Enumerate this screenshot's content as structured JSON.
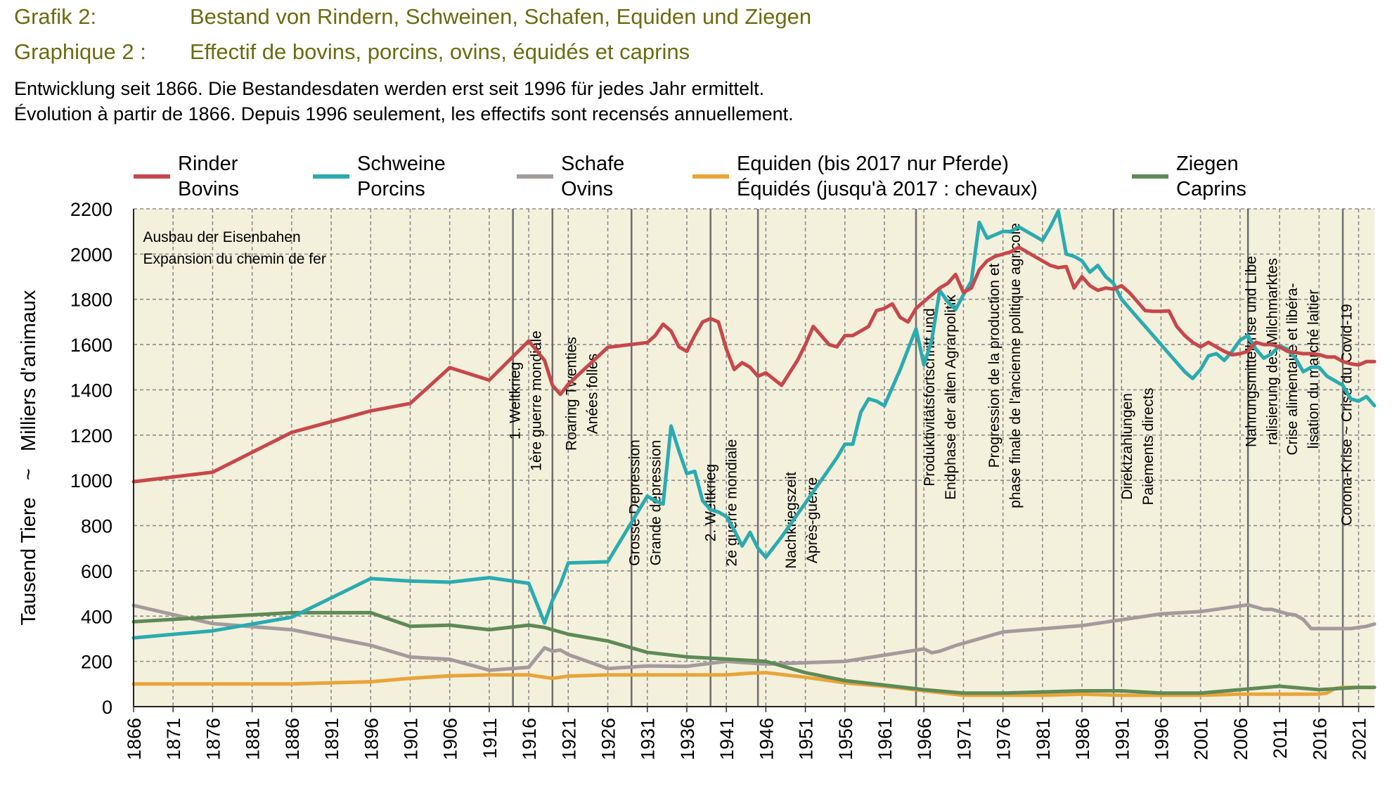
{
  "header": {
    "line1_label": "Grafik 2:",
    "line1_title": "Bestand von Rindern, Schweinen, Schafen, Equiden und Ziegen",
    "line2_label": "Graphique 2 :",
    "line2_title": "Effectif de bovins, porcins, ovins, équidés et caprins",
    "subtitle1": "Entwicklung seit 1866. Die Bestandesdaten werden erst seit 1996 für jedes Jahr ermittelt.",
    "subtitle2": "Évolution à partir de 1866. Depuis 1996 seulement, les effectifs sont recensés annuellement."
  },
  "colors": {
    "plot_bg": "#f3f0dc",
    "grid": "#8c8c8c",
    "period_line": "#6e6e6e"
  },
  "chart_data": {
    "type": "line",
    "ylabel": "Tausend Tiere   ~   Milliers d'animaux",
    "xlim": [
      1866,
      2023
    ],
    "ylim": [
      0,
      2200
    ],
    "y_ticks": [
      0,
      200,
      400,
      600,
      800,
      1000,
      1200,
      1400,
      1600,
      1800,
      2000,
      2200
    ],
    "x_ticks": [
      1866,
      1871,
      1876,
      1881,
      1886,
      1891,
      1896,
      1901,
      1906,
      1911,
      1916,
      1921,
      1926,
      1931,
      1936,
      1941,
      1946,
      1951,
      1956,
      1961,
      1966,
      1971,
      1976,
      1981,
      1986,
      1991,
      1996,
      2001,
      2006,
      2011,
      2016,
      2021
    ],
    "grid": true,
    "legend_position": "top",
    "series": [
      {
        "name": "Rinder",
        "name_fr": "Bovins",
        "color": "#c7474a",
        "x": [
          1866,
          1876,
          1886,
          1896,
          1901,
          1906,
          1911,
          1916,
          1918,
          1919,
          1920,
          1921,
          1926,
          1931,
          1932,
          1933,
          1934,
          1935,
          1936,
          1937,
          1938,
          1939,
          1940,
          1941,
          1942,
          1943,
          1944,
          1945,
          1946,
          1948,
          1950,
          1951,
          1952,
          1953,
          1954,
          1955,
          1956,
          1957,
          1958,
          1959,
          1960,
          1961,
          1962,
          1963,
          1964,
          1965,
          1966,
          1967,
          1968,
          1969,
          1970,
          1971,
          1972,
          1973,
          1974,
          1975,
          1976,
          1977,
          1978,
          1979,
          1980,
          1981,
          1982,
          1983,
          1984,
          1985,
          1986,
          1987,
          1988,
          1989,
          1990,
          1991,
          1992,
          1993,
          1994,
          1995,
          1996,
          1997,
          1998,
          1999,
          2000,
          2001,
          2002,
          2003,
          2004,
          2005,
          2006,
          2007,
          2008,
          2009,
          2010,
          2011,
          2012,
          2013,
          2014,
          2015,
          2016,
          2017,
          2018,
          2019,
          2020,
          2021,
          2022,
          2023
        ],
        "y": [
          994,
          1036,
          1212,
          1307,
          1340,
          1498,
          1443,
          1616,
          1530,
          1420,
          1380,
          1425,
          1588,
          1609,
          1640,
          1690,
          1660,
          1590,
          1570,
          1640,
          1700,
          1715,
          1700,
          1580,
          1490,
          1520,
          1500,
          1460,
          1475,
          1420,
          1530,
          1600,
          1680,
          1640,
          1600,
          1590,
          1640,
          1640,
          1660,
          1680,
          1750,
          1760,
          1780,
          1720,
          1700,
          1760,
          1790,
          1820,
          1850,
          1870,
          1910,
          1830,
          1850,
          1930,
          1970,
          1990,
          2000,
          2010,
          2030,
          2010,
          1990,
          1970,
          1950,
          1940,
          1945,
          1850,
          1900,
          1860,
          1840,
          1850,
          1845,
          1860,
          1830,
          1790,
          1750,
          1747,
          1747,
          1749,
          1680,
          1640,
          1610,
          1590,
          1610,
          1590,
          1570,
          1555,
          1560,
          1570,
          1610,
          1600,
          1600,
          1590,
          1570,
          1565,
          1560,
          1560,
          1556,
          1545,
          1545,
          1525,
          1515,
          1510,
          1525,
          1525
        ]
      },
      {
        "name": "Schweine",
        "name_fr": "Porcins",
        "color": "#2aabb0",
        "x": [
          1866,
          1876,
          1886,
          1896,
          1901,
          1906,
          1911,
          1916,
          1918,
          1919,
          1920,
          1921,
          1926,
          1931,
          1932,
          1933,
          1934,
          1935,
          1936,
          1937,
          1938,
          1939,
          1940,
          1941,
          1942,
          1943,
          1944,
          1945,
          1946,
          1948,
          1950,
          1951,
          1952,
          1953,
          1954,
          1955,
          1956,
          1957,
          1958,
          1959,
          1960,
          1961,
          1962,
          1963,
          1964,
          1965,
          1966,
          1967,
          1968,
          1969,
          1970,
          1971,
          1972,
          1973,
          1974,
          1975,
          1976,
          1977,
          1978,
          1979,
          1980,
          1981,
          1982,
          1983,
          1984,
          1985,
          1986,
          1987,
          1988,
          1989,
          1990,
          1991,
          1992,
          1993,
          1994,
          1995,
          1996,
          1997,
          1998,
          1999,
          2000,
          2001,
          2002,
          2003,
          2004,
          2005,
          2006,
          2007,
          2008,
          2009,
          2010,
          2011,
          2012,
          2013,
          2014,
          2015,
          2016,
          2017,
          2018,
          2019,
          2020,
          2021,
          2022,
          2023
        ],
        "y": [
          304,
          335,
          395,
          566,
          555,
          550,
          570,
          545,
          370,
          470,
          540,
          635,
          640,
          930,
          910,
          895,
          1240,
          1130,
          1030,
          1040,
          910,
          870,
          860,
          840,
          780,
          710,
          770,
          700,
          660,
          750,
          850,
          900,
          950,
          1000,
          1050,
          1100,
          1160,
          1160,
          1300,
          1360,
          1350,
          1330,
          1410,
          1490,
          1580,
          1670,
          1510,
          1620,
          1840,
          1790,
          1755,
          1820,
          1880,
          2140,
          2070,
          2085,
          2100,
          2100,
          2120,
          2100,
          2080,
          2060,
          2120,
          2190,
          2000,
          1990,
          1970,
          1920,
          1950,
          1900,
          1870,
          1800,
          1760,
          1720,
          1680,
          1640,
          1600,
          1560,
          1520,
          1480,
          1450,
          1490,
          1550,
          1560,
          1530,
          1570,
          1620,
          1640,
          1580,
          1540,
          1560,
          1595,
          1580,
          1540,
          1480,
          1500,
          1500,
          1460,
          1440,
          1420,
          1360,
          1350,
          1370,
          1330
        ]
      },
      {
        "name": "Schafe",
        "name_fr": "Ovins",
        "color": "#a39b9b",
        "x": [
          1866,
          1876,
          1886,
          1896,
          1901,
          1906,
          1911,
          1916,
          1918,
          1919,
          1920,
          1921,
          1926,
          1931,
          1936,
          1941,
          1946,
          1956,
          1966,
          1967,
          1968,
          1970,
          1976,
          1986,
          1996,
          2001,
          2006,
          2007,
          2008,
          2009,
          2010,
          2011,
          2012,
          2013,
          2014,
          2015,
          2016,
          2017,
          2018,
          2019,
          2020,
          2021,
          2022,
          2023
        ],
        "y": [
          447,
          367,
          340,
          271,
          219,
          209,
          161,
          174,
          260,
          245,
          250,
          230,
          168,
          180,
          178,
          200,
          188,
          200,
          255,
          238,
          245,
          270,
          330,
          358,
          410,
          420,
          445,
          450,
          440,
          430,
          430,
          420,
          410,
          405,
          385,
          345,
          345,
          345,
          345,
          345,
          345,
          350,
          355,
          365
        ]
      },
      {
        "name": "Equiden (bis 2017 nur Pferde)",
        "name_fr": "Équidés (jusqu'à 2017 : chevaux)",
        "color": "#e8a53a",
        "x": [
          1866,
          1876,
          1886,
          1896,
          1901,
          1906,
          1911,
          1916,
          1918,
          1919,
          1921,
          1926,
          1931,
          1936,
          1941,
          1944,
          1946,
          1951,
          1956,
          1961,
          1966,
          1971,
          1976,
          1981,
          1986,
          1991,
          1996,
          2001,
          2006,
          2011,
          2016,
          2017,
          2018,
          2019,
          2020,
          2021,
          2022,
          2023
        ],
        "y": [
          100,
          100,
          100,
          110,
          125,
          136,
          140,
          140,
          130,
          125,
          135,
          140,
          140,
          140,
          140,
          148,
          150,
          130,
          105,
          90,
          70,
          50,
          50,
          50,
          55,
          50,
          50,
          50,
          55,
          55,
          55,
          60,
          80,
          85,
          85,
          85,
          85,
          85
        ]
      },
      {
        "name": "Ziegen",
        "name_fr": "Caprins",
        "color": "#5e8a55",
        "x": [
          1866,
          1876,
          1886,
          1891,
          1896,
          1901,
          1906,
          1911,
          1916,
          1918,
          1919,
          1921,
          1926,
          1931,
          1936,
          1941,
          1946,
          1951,
          1956,
          1961,
          1966,
          1971,
          1976,
          1981,
          1986,
          1991,
          1996,
          2001,
          2006,
          2011,
          2016,
          2021,
          2023
        ],
        "y": [
          375,
          396,
          415,
          415,
          415,
          355,
          360,
          340,
          360,
          350,
          340,
          320,
          290,
          240,
          220,
          210,
          200,
          150,
          115,
          95,
          75,
          60,
          60,
          65,
          70,
          70,
          60,
          60,
          75,
          90,
          75,
          85,
          85
        ]
      }
    ],
    "annotations": [
      {
        "x": 1866,
        "lines": [
          "Ausbau der Eisenbahen",
          "Expansion du chemin de fer"
        ]
      },
      {
        "x": 1914,
        "lines": [
          "1. Weltkrieg",
          "1ère guerre mondiale"
        ]
      },
      {
        "x": 1919,
        "lines": [
          "Roaring Twenties",
          "Anées folles"
        ]
      },
      {
        "x": 1929,
        "lines": [
          "Grosse Depression",
          "Grande dépression"
        ]
      },
      {
        "x": 1939,
        "lines": [
          "2. Weltkrieg",
          "2e guerre mondiale"
        ]
      },
      {
        "x": 1945,
        "lines": [
          "Nachkriegszeit",
          "Après-guerre"
        ]
      },
      {
        "x": 1965,
        "lines": [
          "Produktivitätsfortschritt und",
          "Endphase der alten Agrarpolitik"
        ]
      },
      {
        "x": 1965,
        "lines": [
          "Progression de la production et",
          "phase finale de l'ancienne politique agricole"
        ]
      },
      {
        "x": 1990,
        "lines": [
          "Direktzahlungen",
          "Paiements directs"
        ]
      },
      {
        "x": 2007,
        "lines": [
          "Nahrungsmittelkrise und Libe",
          "ralisierung des Milchmarktes"
        ]
      },
      {
        "x": 2007,
        "lines": [
          "Crise alimentaire et libéra-",
          "lisation du marché laitier"
        ]
      },
      {
        "x": 2019,
        "lines": [
          "Corona-Krise   ~   Crise du Covid-19"
        ]
      }
    ]
  }
}
